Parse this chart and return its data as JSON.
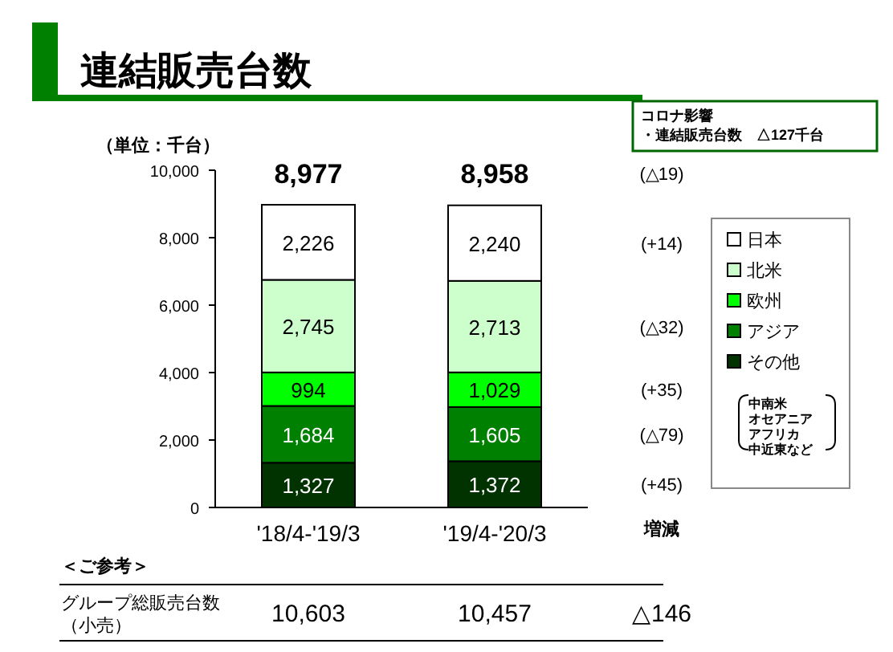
{
  "chart_data": {
    "type": "bar",
    "stacked": true,
    "title": "連結販売台数",
    "ylabel": "（単位：千台）",
    "categories": [
      "'18/4-'19/3",
      "'19/4-'20/3"
    ],
    "series": [
      {
        "name": "その他",
        "color": "#003300",
        "values": [
          1327,
          1372
        ],
        "value_labels": [
          "1,327",
          "1,372"
        ]
      },
      {
        "name": "アジア",
        "color": "#008000",
        "values": [
          1684,
          1605
        ],
        "value_labels": [
          "1,684",
          "1,605"
        ]
      },
      {
        "name": "欧州",
        "color": "#00ff00",
        "values": [
          994,
          1029
        ],
        "value_labels": [
          "994",
          "1,029"
        ]
      },
      {
        "name": "北米",
        "color": "#ccffcc",
        "values": [
          2745,
          2713
        ],
        "value_labels": [
          "2,745",
          "2,713"
        ]
      },
      {
        "name": "日本",
        "color": "#ffffff",
        "values": [
          2226,
          2240
        ],
        "value_labels": [
          "2,226",
          "2,240"
        ]
      }
    ],
    "ylim": [
      0,
      10000
    ],
    "yticks": [
      0,
      {
        "value": 2000,
        "label": "2,000"
      },
      {
        "value": 4000,
        "label": "4,000"
      },
      {
        "value": 6000,
        "label": "6,000"
      },
      {
        "value": 8000,
        "label": "8,000"
      },
      {
        "value": 10000,
        "label": "10,000"
      }
    ],
    "totals": [
      "8,977",
      "8,958"
    ],
    "legend": "right",
    "annotations": [
      "コロナ影響",
      "・連結販売台数　△127千台",
      "(△19)",
      "(+45)",
      "(△79)",
      "(+35)",
      "(△32)",
      "(+14)",
      "増減",
      "中南米",
      "オセアニア",
      "アフリカ",
      "中近東など",
      "＜ご参考＞",
      "グループ総販売台数",
      "（小売）",
      "10,603",
      "10,457",
      "△146"
    ]
  }
}
